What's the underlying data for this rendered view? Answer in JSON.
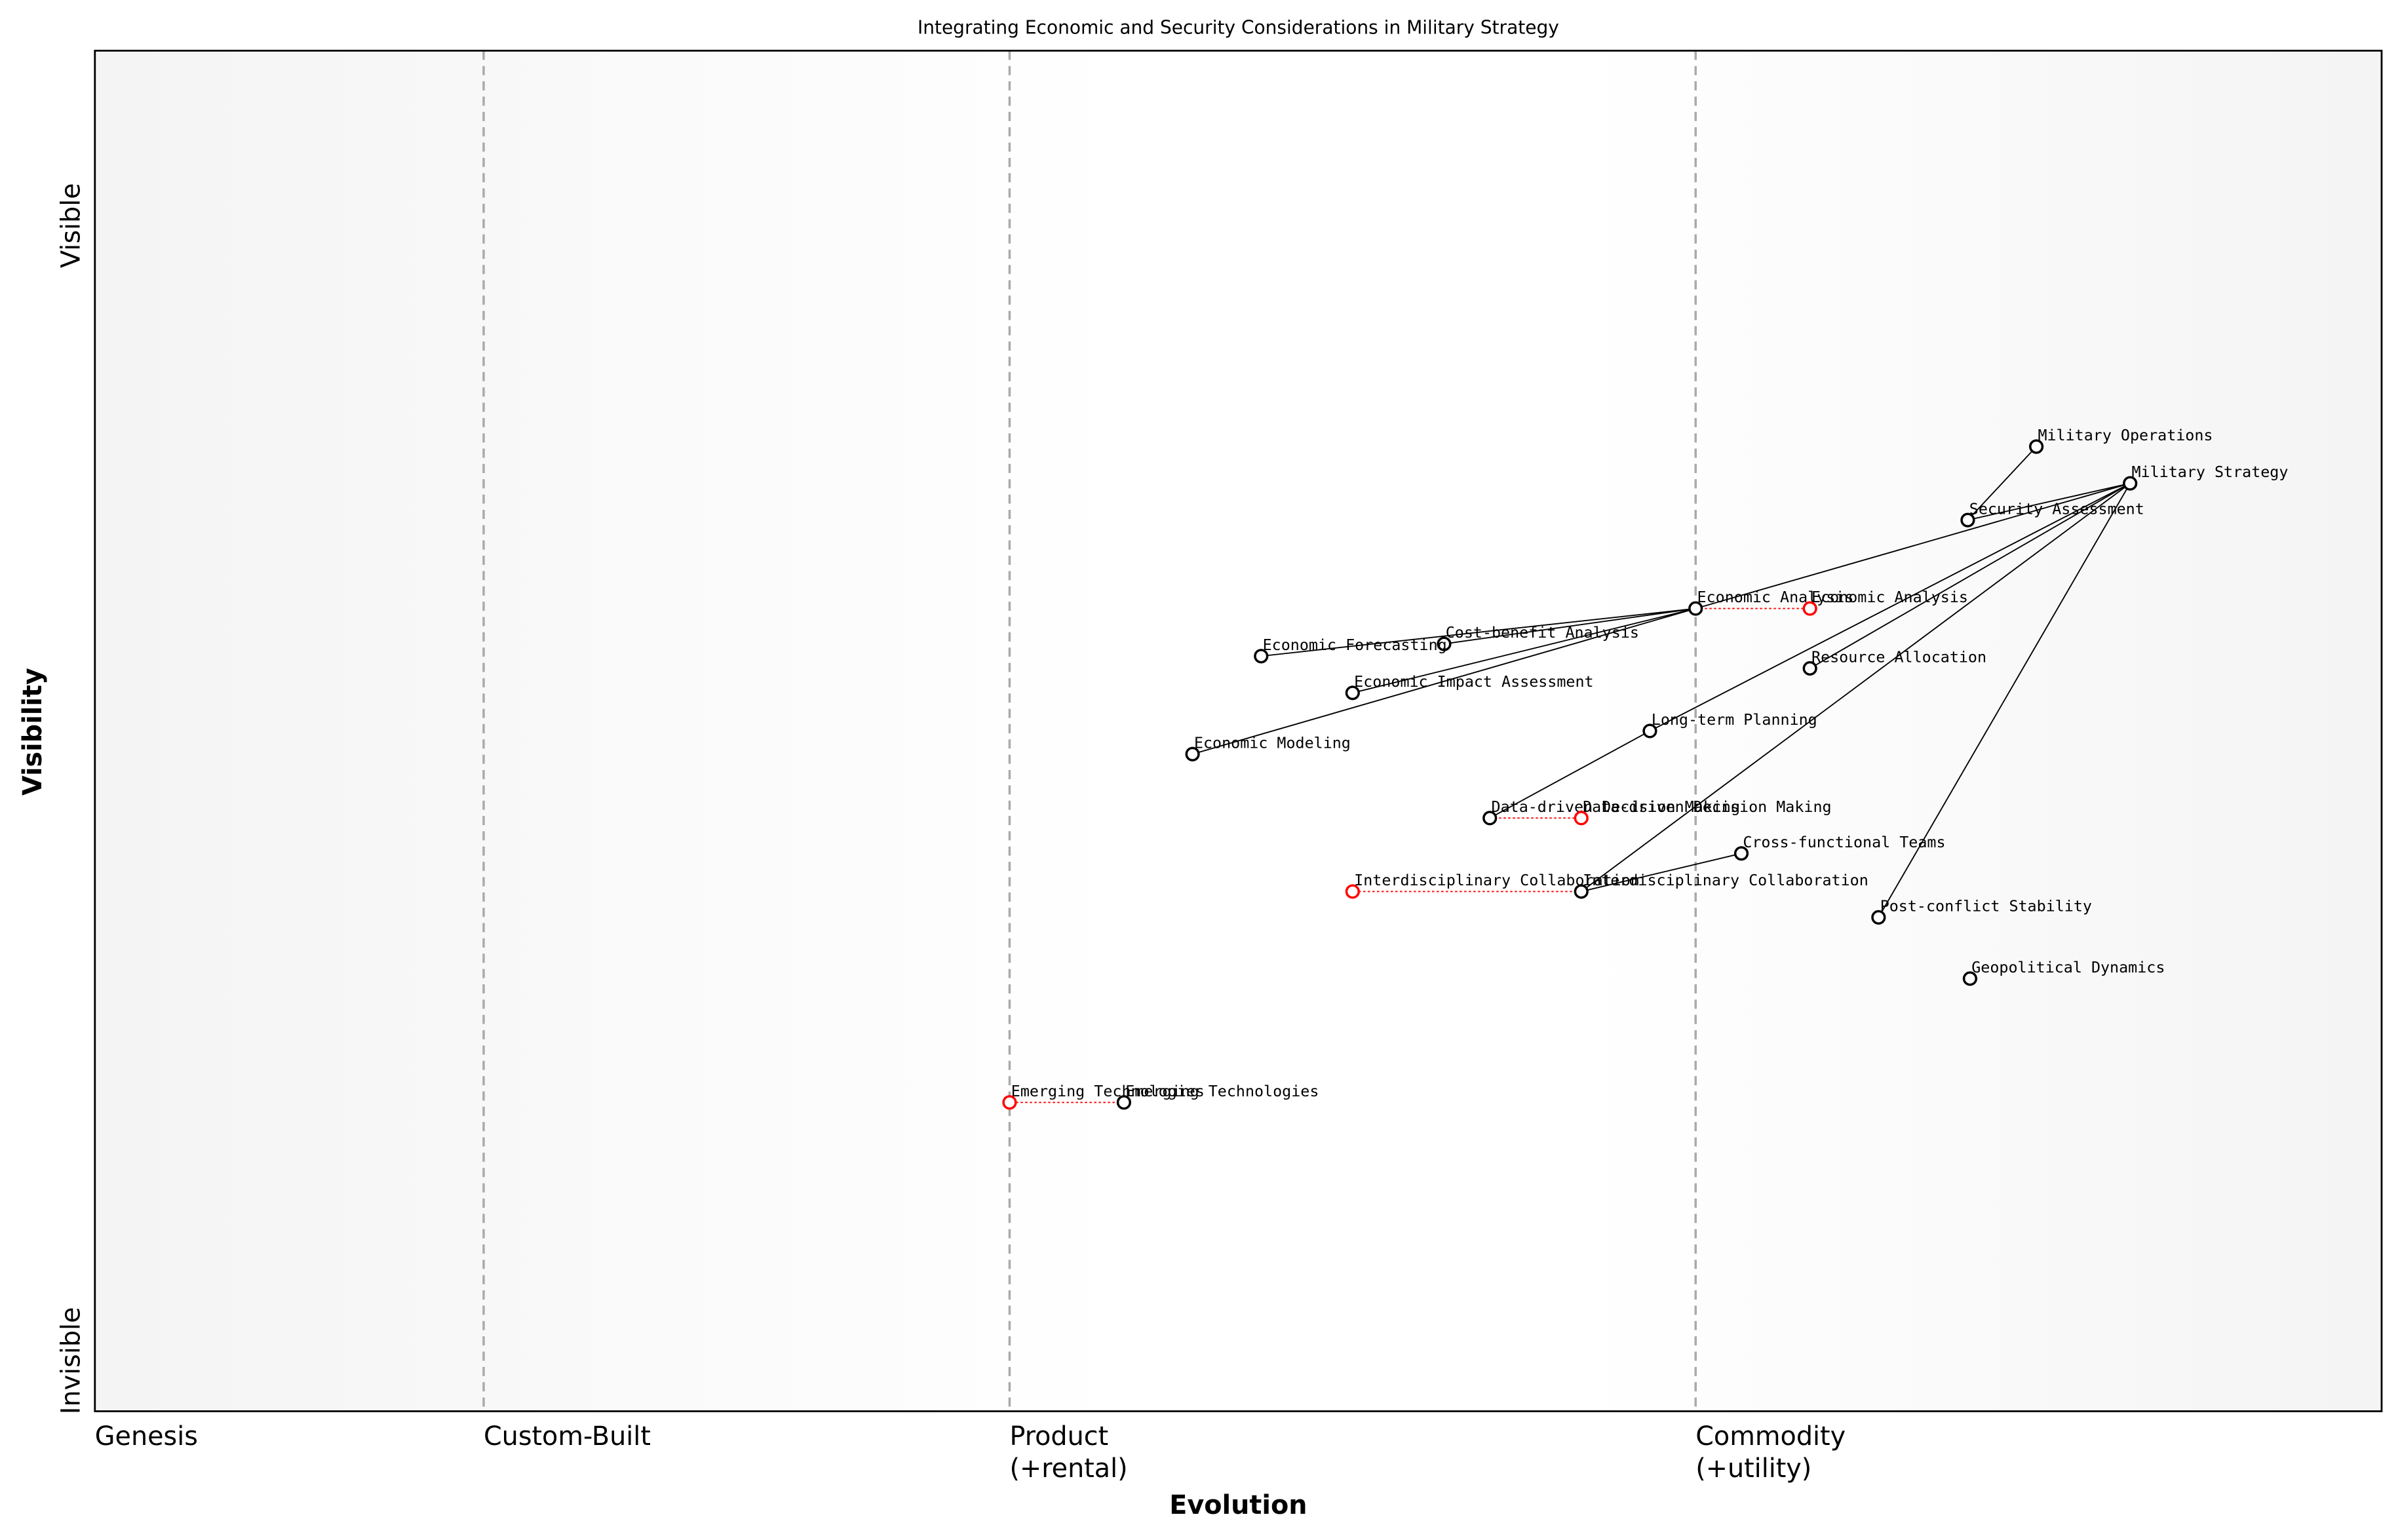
{
  "map": {
    "type": "wardley",
    "title": "Integrating Economic and Security Considerations in Military Strategy",
    "x_label": "Evolution",
    "y_label": "Visibility",
    "y_top": "Visible",
    "y_bottom": "Invisible",
    "stages": [
      {
        "value": 0,
        "lines": [
          "Genesis"
        ]
      },
      {
        "value": 0.17,
        "lines": [
          "Custom-Built"
        ]
      },
      {
        "value": 0.4,
        "lines": [
          "Product",
          "(+rental)"
        ]
      },
      {
        "value": 0.7,
        "lines": [
          "Commodity",
          "(+utility)"
        ]
      }
    ],
    "nodes": [
      {
        "name": "Military Operations",
        "evolution": 0.849,
        "visibility": 0.709
      },
      {
        "name": "Military Strategy",
        "evolution": 0.89,
        "visibility": 0.682
      },
      {
        "name": "Security Assessment",
        "evolution": 0.819,
        "visibility": 0.655
      },
      {
        "name": "Economic Analysis",
        "evolution": 0.7,
        "visibility": 0.59
      },
      {
        "name": "Cost-benefit Analysis",
        "evolution": 0.59,
        "visibility": 0.564
      },
      {
        "name": "Economic Forecasting",
        "evolution": 0.51,
        "visibility": 0.555
      },
      {
        "name": "Economic Impact Assessment",
        "evolution": 0.55,
        "visibility": 0.528
      },
      {
        "name": "Resource Allocation",
        "evolution": 0.75,
        "visibility": 0.546
      },
      {
        "name": "Long-term Planning",
        "evolution": 0.68,
        "visibility": 0.5
      },
      {
        "name": "Economic Modeling",
        "evolution": 0.48,
        "visibility": 0.483
      },
      {
        "name": "Data-driven Decision Making",
        "evolution": 0.61,
        "visibility": 0.436
      },
      {
        "name": "Cross-functional Teams",
        "evolution": 0.72,
        "visibility": 0.41
      },
      {
        "name": "Interdisciplinary Collaboration",
        "evolution": 0.65,
        "visibility": 0.382
      },
      {
        "name": "Post-conflict Stability",
        "evolution": 0.78,
        "visibility": 0.363
      },
      {
        "name": "Geopolitical Dynamics",
        "evolution": 0.82,
        "visibility": 0.318
      },
      {
        "name": "Emerging Technologies",
        "evolution": 0.45,
        "visibility": 0.227
      }
    ],
    "links": [
      [
        2,
        0
      ],
      [
        1,
        2
      ],
      [
        1,
        3
      ],
      [
        1,
        7
      ],
      [
        1,
        8
      ],
      [
        1,
        12
      ],
      [
        1,
        13
      ],
      [
        3,
        4
      ],
      [
        3,
        5
      ],
      [
        3,
        6
      ],
      [
        3,
        9
      ],
      [
        8,
        10
      ],
      [
        12,
        11
      ]
    ],
    "evolved": [
      {
        "node": 3,
        "evolution": 0.75
      },
      {
        "node": 10,
        "evolution": 0.65
      },
      {
        "node": 12,
        "evolution": 0.55
      },
      {
        "node": 15,
        "evolution": 0.4
      }
    ]
  }
}
